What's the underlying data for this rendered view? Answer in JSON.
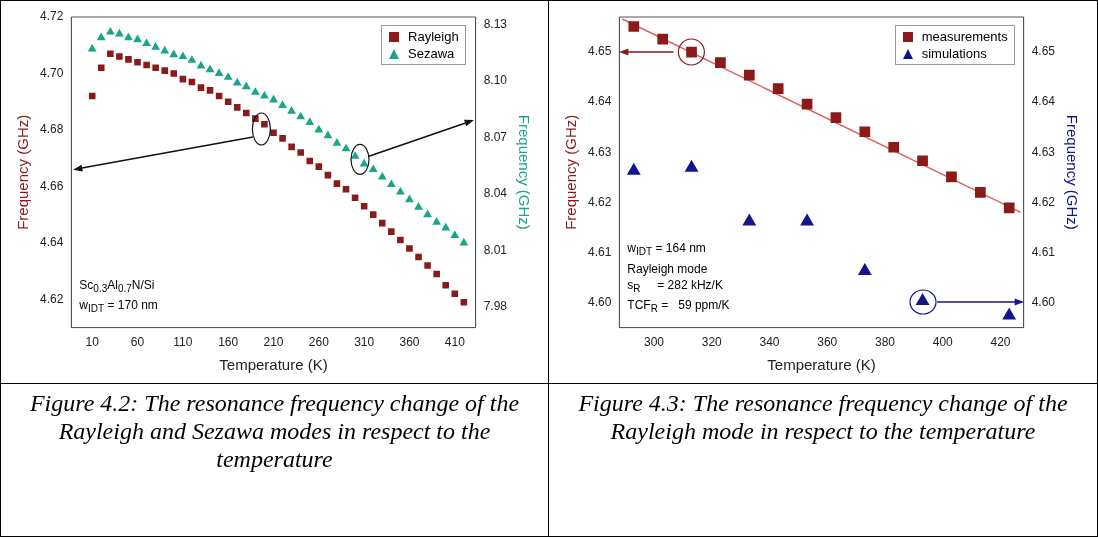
{
  "chart_data": [
    {
      "type": "scatter",
      "title": "Figure 4.2: The resonance frequency change of the Rayleigh and Sezawa modes in respect to the temperature",
      "xlabel": "Temperature (K)",
      "ylabel": "Frequency (GHz)",
      "y2label": "Frequency (GHz)",
      "annotations": [
        "Sc$_{0.3}$Al$_{0.7}$N/Si",
        "w$_{IDT}$ = 170 nm"
      ],
      "x": [
        10,
        20,
        30,
        40,
        50,
        60,
        70,
        80,
        90,
        100,
        110,
        120,
        130,
        140,
        150,
        160,
        170,
        180,
        190,
        200,
        210,
        220,
        230,
        240,
        250,
        260,
        270,
        280,
        290,
        300,
        310,
        320,
        330,
        340,
        350,
        360,
        370,
        380,
        390,
        400,
        410,
        420
      ],
      "series": [
        {
          "name": "Rayleigh",
          "color": "#8b1a1a",
          "marker": "square",
          "values": [
            4.692,
            4.702,
            4.707,
            4.706,
            4.705,
            4.704,
            4.703,
            4.702,
            4.701,
            4.7,
            4.698,
            4.697,
            4.695,
            4.694,
            4.692,
            4.69,
            4.688,
            4.686,
            4.684,
            4.682,
            4.679,
            4.677,
            4.674,
            4.672,
            4.669,
            4.667,
            4.664,
            4.661,
            4.659,
            4.656,
            4.653,
            4.65,
            4.647,
            4.644,
            4.641,
            4.638,
            4.635,
            4.632,
            4.629,
            4.625,
            4.622,
            4.619
          ]
        },
        {
          "name": "Sezawa",
          "color": "#1aa58a",
          "marker": "triangle",
          "axis": "y2",
          "values": [
            8.117,
            8.123,
            8.126,
            8.125,
            8.123,
            8.122,
            8.12,
            8.118,
            8.116,
            8.114,
            8.113,
            8.111,
            8.108,
            8.106,
            8.104,
            8.102,
            8.099,
            8.097,
            8.094,
            8.092,
            8.09,
            8.087,
            8.084,
            8.081,
            8.078,
            8.074,
            8.071,
            8.067,
            8.064,
            8.06,
            8.056,
            8.053,
            8.049,
            8.045,
            8.041,
            8.037,
            8.033,
            8.029,
            8.025,
            8.022,
            8.018,
            8.014
          ]
        }
      ],
      "xlim": [
        -13,
        433
      ],
      "xticks": [
        10,
        60,
        110,
        160,
        210,
        260,
        310,
        360,
        410
      ],
      "ylim": [
        4.61,
        4.72
      ],
      "yticks": [
        {
          "value": 4.62,
          "label": "4.62"
        },
        {
          "value": 4.64,
          "label": "4.64"
        },
        {
          "value": 4.66,
          "label": "4.66"
        },
        {
          "value": 4.68,
          "label": "4.68"
        },
        {
          "value": 4.7,
          "label": "4.70"
        },
        {
          "value": 4.72,
          "label": "4.72"
        }
      ],
      "y2lim": [
        7.969,
        8.134
      ],
      "y2ticks": [
        7.98,
        8.01,
        8.04,
        8.07,
        {
          "value": 8.1,
          "label": "8.10"
        },
        8.13
      ],
      "legend": "top right",
      "grid": false
    },
    {
      "type": "scatter",
      "title": "Figure 4.3: The resonance frequency change of the Rayleigh mode in respect to the temperature",
      "xlabel": "Temperature (K)",
      "ylabel": "Frequency (GHz)",
      "y2label": "Frequency (GHz)",
      "annotations": [
        "w$_{IDT}$ = 164 nm",
        "Rayleigh mode",
        "s$_{R}$     = 282 kHz/K",
        "TCF$_{R}$ =   59 ppm/K"
      ],
      "series": [
        {
          "name": "measurements",
          "color": "#8b1a1a",
          "marker": "square",
          "x": [
            293,
            303,
            313,
            323,
            333,
            343,
            353,
            363,
            373,
            383,
            393,
            403,
            413,
            423
          ],
          "values": [
            4.6551,
            4.6526,
            4.65,
            4.6479,
            4.6454,
            4.6427,
            4.6396,
            4.6369,
            4.6341,
            4.631,
            4.6283,
            4.6251,
            4.622,
            4.6189
          ]
        },
        {
          "name": "simulations",
          "color": "#14148c",
          "marker": "triangle",
          "axis": "y2",
          "x": [
            293,
            313,
            333,
            353,
            373,
            393,
            423
          ],
          "values": [
            4.6263,
            4.6269,
            4.6162,
            4.6162,
            4.6063,
            4.6003,
            4.5974
          ]
        },
        {
          "type": "line",
          "color": "#e06060",
          "marker": "none",
          "x": [
            289,
            427
          ],
          "values": [
            4.6566,
            4.618
          ]
        }
      ],
      "xlim": [
        288,
        428
      ],
      "xticks": [
        300,
        320,
        340,
        360,
        380,
        400,
        420
      ],
      "ylim": [
        4.595,
        4.657
      ],
      "yticks": [
        {
          "value": 4.6,
          "label": "4.60"
        },
        4.61,
        4.62,
        4.63,
        4.64,
        4.65
      ],
      "y2lim": [
        4.595,
        4.657
      ],
      "y2ticks": [
        {
          "value": 4.6,
          "label": "4.60"
        },
        4.61,
        4.62,
        4.63,
        4.64,
        4.65
      ],
      "legend": "top right",
      "grid": false
    }
  ]
}
